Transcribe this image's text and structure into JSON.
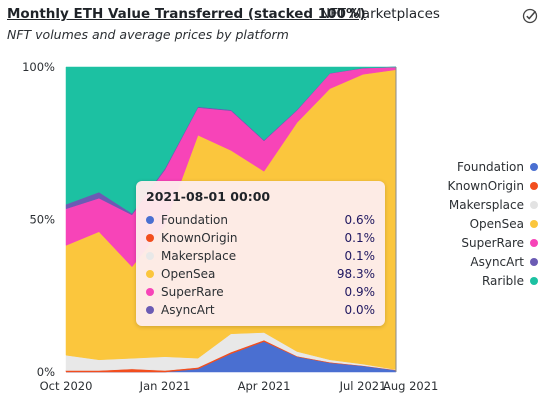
{
  "header": {
    "title": "Monthly ETH Value Transferred (stacked 100%)",
    "section": "NFT Marketplaces",
    "subtitle": "NFT volumes and average prices by platform",
    "icon": "check-circle-icon"
  },
  "chart_data": {
    "type": "area",
    "stacked_percent": true,
    "x": [
      "2020-10",
      "2020-11",
      "2020-12",
      "2021-01",
      "2021-02",
      "2021-03",
      "2021-04",
      "2021-05",
      "2021-06",
      "2021-07",
      "2021-08"
    ],
    "x_ticks": [
      "Oct 2020",
      "Jan 2021",
      "Apr 2021",
      "Jul 2021",
      "Aug 2021"
    ],
    "x_tick_values": [
      "2020-10",
      "2021-01",
      "2021-04",
      "2021-07",
      "2021-08"
    ],
    "y_ticks": [
      "0%",
      "50%",
      "100%"
    ],
    "y_tick_values": [
      0,
      50,
      100
    ],
    "ylim": [
      0,
      100
    ],
    "legend_position": "right",
    "series": [
      {
        "name": "Foundation",
        "color": "#4a6fd1",
        "values": [
          0,
          0,
          0,
          0,
          1,
          6,
          10,
          5,
          3,
          2,
          0.6
        ]
      },
      {
        "name": "KnownOrigin",
        "color": "#f24e1e",
        "values": [
          0.5,
          0.5,
          1,
          0.5,
          0.5,
          0.5,
          0.5,
          0.2,
          0.2,
          0.1,
          0.1
        ]
      },
      {
        "name": "Makersplace",
        "color": "#e8e8e8",
        "values": [
          5,
          3.5,
          3.5,
          4.5,
          3,
          6,
          2.5,
          1.5,
          0.8,
          0.5,
          0.1
        ]
      },
      {
        "name": "OpenSea",
        "color": "#fbc63d",
        "values": [
          36,
          42,
          30,
          43,
          73,
          60,
          53,
          75,
          89,
          95,
          98.3
        ]
      },
      {
        "name": "SuperRare",
        "color": "#f744b8",
        "values": [
          12,
          11,
          17,
          18,
          9,
          13,
          10,
          4,
          5,
          2,
          0.9
        ]
      },
      {
        "name": "AsyncArt",
        "color": "#6b5bb4",
        "values": [
          1.5,
          2,
          0.5,
          0.5,
          0.3,
          0.3,
          0.3,
          0.2,
          0.1,
          0.1,
          0.0
        ]
      },
      {
        "name": "Rarible",
        "color": "#1cc1a2",
        "values": [
          45,
          41,
          48,
          33,
          13,
          14,
          24,
          14,
          2,
          0.3,
          0
        ]
      }
    ]
  },
  "tooltip": {
    "date": "2021-08-01 00:00",
    "rows": [
      {
        "name": "Foundation",
        "value": "0.6%",
        "color": "#4a6fd1"
      },
      {
        "name": "KnownOrigin",
        "value": "0.1%",
        "color": "#f24e1e"
      },
      {
        "name": "Makersplace",
        "value": "0.1%",
        "color": "#e8e8e8"
      },
      {
        "name": "OpenSea",
        "value": "98.3%",
        "color": "#fbc63d"
      },
      {
        "name": "SuperRare",
        "value": "0.9%",
        "color": "#f744b8"
      },
      {
        "name": "AsyncArt",
        "value": "0.0%",
        "color": "#6b5bb4"
      }
    ]
  }
}
